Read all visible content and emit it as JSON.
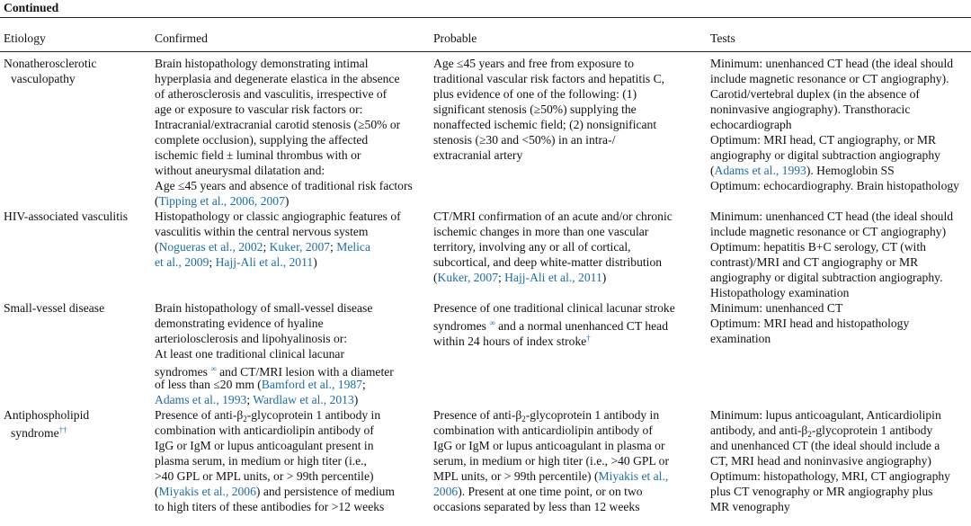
{
  "header": {
    "label": "Continued"
  },
  "table": {
    "columns": [
      "Etiology",
      "Confirmed",
      "Probable",
      "Tests"
    ],
    "rows": [
      {
        "etiology": [
          "Nonatherosclerotic",
          "vasculopathy"
        ],
        "confirmed": [
          "Brain histopathology demonstrating intimal",
          "hyperplasia and degenerate elastica in the absence",
          "of atherosclerosis and vasculitis, irrespective of",
          "age or exposure to vascular risk factors or:",
          "Intracranial/extracranial carotid stenosis (≥50% or",
          "complete occlusion), supplying the affected",
          "ischemic field ± luminal thrombus with or",
          "without aneurysmal dilatation and:",
          "Age ≤45 years and absence of traditional risk factors",
          [
            "(",
            {
              "cite": "Tipping et al., 2006, 2007"
            },
            ")"
          ]
        ],
        "probable": [
          "Age ≤45 years and free from exposure to",
          "traditional vascular risk factors and hepatitis C,",
          "plus evidence of one of the following: (1)",
          "significant stenosis (≥50%) supplying the",
          "nonaffected ischemic field; (2) nonsignificant",
          "stenosis (≥30 and <50%) in an intra-/",
          "extracranial artery"
        ],
        "tests": [
          "Minimum: unenhanced CT head (the ideal should",
          "include magnetic resonance or CT angiography).",
          "Carotid/vertebral duplex (in the absence of",
          "noninvasive angiography). Transthoracic",
          "echocardiograph",
          "Optimum: MRI head, CT angiography, or MR",
          "angiography or digital subtraction angiography",
          [
            "(",
            {
              "cite": "Adams et al., 1993"
            },
            "). Hemoglobin SS"
          ],
          "Optimum: echocardiography. Brain histopathology"
        ]
      },
      {
        "etiology": [
          "HIV-associated vasculitis"
        ],
        "confirmed": [
          "Histopathology or classic angiographic features of",
          "vasculitis within the central nervous system",
          [
            "(",
            {
              "cite": "Nogueras et al., 2002"
            },
            "; ",
            {
              "cite": "Kuker, 2007"
            },
            "; ",
            {
              "cite": "Melica"
            }
          ],
          [
            {
              "cite": "et al., 2009"
            },
            "; ",
            {
              "cite": "Hajj-Ali et al., 2011"
            },
            ")"
          ]
        ],
        "probable": [
          "CT/MRI confirmation of an acute and/or chronic",
          "ischemic changes in more than one vascular",
          "territory, involving any or all of cortical,",
          "subcortical, and deep white-matter distribution",
          [
            "(",
            {
              "cite": "Kuker, 2007"
            },
            "; ",
            {
              "cite": "Hajj-Ali et al., 2011"
            },
            ")"
          ]
        ],
        "tests": [
          "Minimum: unenhanced CT head (the ideal should",
          "include magnetic resonance or CT angiography)",
          "Optimum: hepatitis B+C serology, CT (with",
          "contrast)/MRI and CT angiography or MR",
          "angiography or digital subtraction angiography.",
          "Histopathology examination"
        ]
      },
      {
        "etiology": [
          "Small-vessel disease"
        ],
        "confirmed": [
          "Brain histopathology of small-vessel disease",
          "demonstrating evidence of hyaline",
          "arteriolosclerosis and lipohyalinosis or:",
          "At least one traditional clinical lacunar",
          [
            "syndromes ",
            {
              "sup": "∞"
            },
            " and CT/MRI lesion with a diameter"
          ],
          [
            "of less than ≤20 mm (",
            {
              "cite": "Bamford et al., 1987"
            },
            ";"
          ],
          [
            {
              "cite": "Adams et al., 1993"
            },
            "; ",
            {
              "cite": "Wardlaw et al., 2013"
            },
            ")"
          ]
        ],
        "probable": [
          "Presence of one traditional clinical lacunar stroke",
          [
            "syndromes ",
            {
              "sup": "∞"
            },
            " and a normal unenhanced CT head"
          ],
          [
            "within 24 hours of index stroke",
            {
              "sup": "†"
            }
          ]
        ],
        "tests": [
          "Minimum: unenhanced CT",
          "Optimum: MRI head and histopathology",
          "examination"
        ]
      },
      {
        "etiology": [
          "Antiphospholipid",
          [
            "syndrome",
            {
              "sup": "††"
            }
          ]
        ],
        "confirmed": [
          [
            "Presence of anti-β",
            {
              "sub": "2"
            },
            "-glycoprotein 1 antibody in"
          ],
          "combination with anticardiolipin antibody of",
          "IgG or IgM or lupus anticoagulant present in",
          "plasma serum, in medium or high titer (i.e.,",
          ">40 GPL or MPL units, or > 99th percentile)",
          [
            "(",
            {
              "cite": "Miyakis et al., 2006"
            },
            ") and persistence of medium"
          ],
          "to high titers of these antibodies for >12 weeks"
        ],
        "probable": [
          [
            "Presence of anti-β",
            {
              "sub": "2"
            },
            "-glycoprotein 1 antibody in"
          ],
          "combination with anticardiolipin antibody of",
          "IgG or IgM or lupus anticoagulant in plasma or",
          "serum, in medium or high titer (i.e., >40 GPL or",
          [
            "MPL units, or > 99th percentile) (",
            {
              "cite": "Miyakis et al.,"
            }
          ],
          [
            {
              "cite": "2006"
            },
            "). Present at one time point, or on two"
          ],
          "occasions separated by less than 12 weeks"
        ],
        "tests": [
          "Minimum: lupus anticoagulant, Anticardiolipin",
          [
            "antibody, and anti-β",
            {
              "sub": "2"
            },
            "-glycoprotein 1 antibody"
          ],
          "and unenhanced CT (the ideal should include a",
          "CT, MRI head and noninvasive angiography)",
          "Optimum: histopathology, MRI, CT angiography",
          "plus CT venography or MR angiography plus",
          "MR venography"
        ]
      }
    ]
  }
}
